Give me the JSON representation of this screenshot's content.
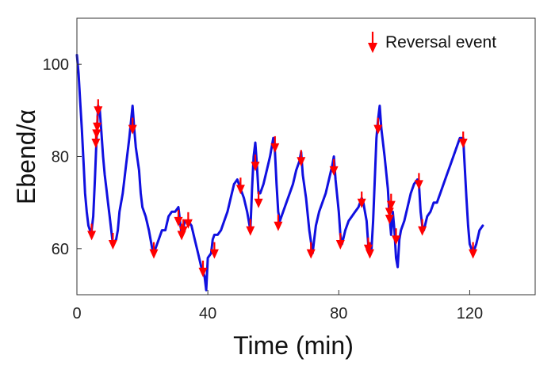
{
  "chart_data": {
    "type": "line",
    "xlabel": "Time (min)",
    "ylabel": "Ebend/α",
    "xlim": [
      0,
      140
    ],
    "ylim": [
      50,
      110
    ],
    "xticks": [
      0,
      40,
      80,
      120
    ],
    "yticks": [
      60,
      80,
      100
    ],
    "grid": false,
    "legend_position": "top-right",
    "colors": {
      "line": "#1010e0",
      "marker": "#ff0000",
      "axis": "#333333"
    },
    "legend": {
      "label": "Reversal event",
      "icon": "down-arrow-icon"
    },
    "series": [
      {
        "points": [
          [
            0,
            102
          ],
          [
            0.5,
            98
          ],
          [
            1,
            92
          ],
          [
            1.5,
            86
          ],
          [
            2,
            79
          ],
          [
            2.5,
            72
          ],
          [
            3,
            68
          ],
          [
            3.5,
            65
          ],
          [
            4,
            64
          ],
          [
            4.5,
            64
          ],
          [
            5,
            67
          ],
          [
            5.5,
            75
          ],
          [
            6,
            84
          ],
          [
            6.5,
            91
          ],
          [
            7,
            90
          ],
          [
            7.5,
            85
          ],
          [
            8,
            80
          ],
          [
            8.5,
            76
          ],
          [
            9,
            73
          ],
          [
            9.5,
            70
          ],
          [
            10,
            67
          ],
          [
            10.5,
            64
          ],
          [
            11,
            61
          ],
          [
            12,
            62
          ],
          [
            12.5,
            64
          ],
          [
            13,
            68
          ],
          [
            14,
            72
          ],
          [
            15,
            78
          ],
          [
            16,
            84
          ],
          [
            17,
            91
          ],
          [
            17.5,
            86
          ],
          [
            18,
            82
          ],
          [
            19,
            77
          ],
          [
            19.5,
            72
          ],
          [
            20,
            69
          ],
          [
            21,
            67
          ],
          [
            22,
            64
          ],
          [
            23,
            60
          ],
          [
            23.5,
            59
          ],
          [
            24,
            60
          ],
          [
            25,
            62
          ],
          [
            26,
            64
          ],
          [
            27,
            64
          ],
          [
            28,
            67
          ],
          [
            29,
            68
          ],
          [
            30,
            68
          ],
          [
            31,
            69
          ],
          [
            32,
            63
          ],
          [
            33,
            66
          ],
          [
            34,
            66
          ],
          [
            35,
            65
          ],
          [
            36,
            62
          ],
          [
            37,
            59
          ],
          [
            38,
            56
          ],
          [
            39,
            54
          ],
          [
            39.5,
            51
          ],
          [
            40,
            58
          ],
          [
            41,
            59
          ],
          [
            41.5,
            62
          ],
          [
            42,
            63
          ],
          [
            43,
            63
          ],
          [
            44,
            64
          ],
          [
            45,
            66
          ],
          [
            46,
            68
          ],
          [
            47,
            71
          ],
          [
            48,
            74
          ],
          [
            49,
            75
          ],
          [
            50,
            73
          ],
          [
            51,
            71
          ],
          [
            52,
            68
          ],
          [
            53,
            64
          ],
          [
            53.5,
            73
          ],
          [
            54,
            80
          ],
          [
            54.5,
            83
          ],
          [
            55,
            78
          ],
          [
            55.5,
            72
          ],
          [
            56,
            72
          ],
          [
            57,
            74
          ],
          [
            58,
            77
          ],
          [
            59,
            80
          ],
          [
            60,
            84
          ],
          [
            60.5,
            81
          ],
          [
            61,
            74
          ],
          [
            61.5,
            68
          ],
          [
            62,
            66
          ],
          [
            63,
            68
          ],
          [
            64,
            70
          ],
          [
            65,
            72
          ],
          [
            66,
            74
          ],
          [
            67,
            77
          ],
          [
            68,
            79
          ],
          [
            68.5,
            81
          ],
          [
            69,
            76
          ],
          [
            70,
            71
          ],
          [
            71,
            64
          ],
          [
            72,
            59
          ],
          [
            72.5,
            62
          ],
          [
            73,
            65
          ],
          [
            74,
            68
          ],
          [
            75,
            70
          ],
          [
            76,
            72
          ],
          [
            77,
            75
          ],
          [
            78,
            78
          ],
          [
            78.5,
            80
          ],
          [
            79,
            75
          ],
          [
            80,
            68
          ],
          [
            80.5,
            63
          ],
          [
            81,
            61
          ],
          [
            82,
            64
          ],
          [
            83,
            66
          ],
          [
            84,
            67
          ],
          [
            85,
            68
          ],
          [
            86,
            69
          ],
          [
            87,
            71
          ],
          [
            87.5,
            70
          ],
          [
            88,
            68
          ],
          [
            88.5,
            66
          ],
          [
            89,
            61
          ],
          [
            89.5,
            59
          ],
          [
            90,
            60
          ],
          [
            90.5,
            66
          ],
          [
            91,
            75
          ],
          [
            91.5,
            84
          ],
          [
            92,
            88
          ],
          [
            92.5,
            91
          ],
          [
            93,
            86
          ],
          [
            94,
            80
          ],
          [
            95,
            73
          ],
          [
            95.5,
            67
          ],
          [
            96,
            63
          ],
          [
            96.5,
            68
          ],
          [
            97,
            64
          ],
          [
            97.5,
            58
          ],
          [
            98,
            56
          ],
          [
            98.5,
            62
          ],
          [
            99,
            64
          ],
          [
            100,
            66
          ],
          [
            101,
            69
          ],
          [
            102,
            72
          ],
          [
            103,
            74
          ],
          [
            104,
            75
          ],
          [
            104.5,
            74
          ],
          [
            105,
            68
          ],
          [
            105.5,
            65
          ],
          [
            106,
            64
          ],
          [
            107,
            67
          ],
          [
            108,
            68
          ],
          [
            109,
            70
          ],
          [
            110,
            70
          ],
          [
            111,
            72
          ],
          [
            112,
            74
          ],
          [
            113,
            76
          ],
          [
            114,
            78
          ],
          [
            115,
            80
          ],
          [
            116,
            82
          ],
          [
            117,
            84
          ],
          [
            118,
            84
          ],
          [
            119,
            71
          ],
          [
            119.5,
            65
          ],
          [
            120,
            61
          ],
          [
            121,
            59
          ],
          [
            122,
            61
          ],
          [
            123,
            64
          ],
          [
            124,
            65
          ]
        ]
      }
    ],
    "reversal_events": [
      [
        4.5,
        63
      ],
      [
        6.5,
        90
      ],
      [
        6.2,
        86.5
      ],
      [
        6,
        85
      ],
      [
        5.8,
        83
      ],
      [
        11,
        61
      ],
      [
        17,
        86
      ],
      [
        23.5,
        59
      ],
      [
        31,
        66
      ],
      [
        32,
        63
      ],
      [
        32.5,
        64
      ],
      [
        34,
        65.5
      ],
      [
        38.5,
        55
      ],
      [
        42,
        59
      ],
      [
        50,
        73
      ],
      [
        53,
        64
      ],
      [
        54.5,
        78
      ],
      [
        55.5,
        70
      ],
      [
        60.5,
        82
      ],
      [
        61.5,
        65
      ],
      [
        68.5,
        79
      ],
      [
        71.5,
        59
      ],
      [
        78.5,
        77
      ],
      [
        80.5,
        61
      ],
      [
        87,
        70
      ],
      [
        89,
        60
      ],
      [
        89.5,
        59
      ],
      [
        92,
        86
      ],
      [
        95.5,
        68
      ],
      [
        96,
        69.5
      ],
      [
        95.5,
        66.5
      ],
      [
        97.5,
        62
      ],
      [
        104.5,
        74
      ],
      [
        105.5,
        64
      ],
      [
        118,
        83
      ],
      [
        121,
        59
      ]
    ]
  }
}
